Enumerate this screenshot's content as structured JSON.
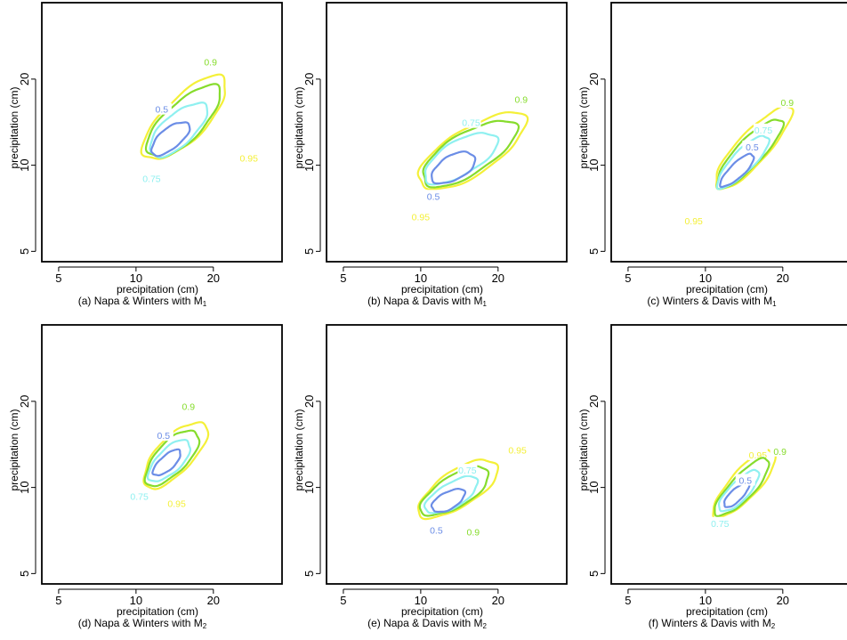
{
  "colors": {
    "0.5": "#6b8de6",
    "0.75": "#8ff0f0",
    "0.9": "#86dc2c",
    "0.95": "#f4f038"
  },
  "chart_data": [
    {
      "type": "contour",
      "caption": "(a) Napa & Winters with",
      "model": "M",
      "model_sub": "1",
      "xlabel": "precipitation (cm)",
      "ylabel": "precipitation (cm)",
      "x_ticks": [
        5,
        10,
        20
      ],
      "y_ticks": [
        5,
        10,
        20
      ],
      "log_scale": true,
      "xlim": [
        4.3,
        37
      ],
      "ylim": [
        4.6,
        37
      ],
      "levels": [
        {
          "level": "0.5",
          "center": [
            13.6,
            12.4
          ],
          "a": 0.2,
          "b": 0.085,
          "angle": 35,
          "label": "0.5",
          "label_pos": [
            12.6,
            15.7
          ]
        },
        {
          "level": "0.75",
          "center": [
            14.6,
            13.3
          ],
          "a": 0.31,
          "b": 0.13,
          "angle": 38,
          "label": "0.75",
          "label_pos": [
            11.5,
            9.0
          ]
        },
        {
          "level": "0.9",
          "center": [
            15.3,
            14.2
          ],
          "a": 0.41,
          "b": 0.16,
          "angle": 40,
          "label": "0.9",
          "label_pos": [
            19.5,
            23.0
          ]
        },
        {
          "level": "0.95",
          "center": [
            15.5,
            14.6
          ],
          "a": 0.47,
          "b": 0.18,
          "angle": 41,
          "label": "0.95",
          "label_pos": [
            27.5,
            10.6
          ]
        }
      ]
    },
    {
      "type": "contour",
      "caption": "(b) Napa & Davis with",
      "model": "M",
      "model_sub": "1",
      "xlabel": "precipitation (cm)",
      "ylabel": "precipitation (cm)",
      "x_ticks": [
        5,
        10,
        20
      ],
      "y_ticks": [
        5,
        10,
        20
      ],
      "log_scale": true,
      "xlim": [
        4.3,
        37
      ],
      "ylim": [
        4.6,
        37
      ],
      "levels": [
        {
          "level": "0.5",
          "center": [
            13.4,
            9.8
          ],
          "a": 0.21,
          "b": 0.1,
          "angle": 25,
          "label": "0.5",
          "label_pos": [
            11.2,
            7.8
          ]
        },
        {
          "level": "0.75",
          "center": [
            14.3,
            10.6
          ],
          "a": 0.36,
          "b": 0.14,
          "angle": 27,
          "label": "0.75",
          "label_pos": [
            15.7,
            14.1
          ]
        },
        {
          "level": "0.9",
          "center": [
            15.4,
            11.0
          ],
          "a": 0.47,
          "b": 0.17,
          "angle": 28,
          "label": "0.9",
          "label_pos": [
            24.6,
            17.0
          ]
        },
        {
          "level": "0.95",
          "center": [
            15.8,
            11.2
          ],
          "a": 0.54,
          "b": 0.19,
          "angle": 29,
          "label": "0.95",
          "label_pos": [
            10.0,
            6.6
          ]
        }
      ]
    },
    {
      "type": "contour",
      "caption": "(c) Winters & Davis with",
      "model": "M",
      "model_sub": "1",
      "xlabel": "precipitation (cm)",
      "ylabel": "precipitation (cm)",
      "x_ticks": [
        5,
        10,
        20
      ],
      "y_ticks": [
        5,
        10,
        20
      ],
      "log_scale": true,
      "xlim": [
        4.3,
        37
      ],
      "ylim": [
        4.6,
        37
      ],
      "levels": [
        {
          "level": "0.5",
          "center": [
            13.3,
            9.6
          ],
          "a": 0.19,
          "b": 0.06,
          "angle": 40,
          "label": "0.5",
          "label_pos": [
            15.2,
            11.6
          ]
        },
        {
          "level": "0.75",
          "center": [
            14.0,
            10.3
          ],
          "a": 0.3,
          "b": 0.09,
          "angle": 42,
          "label": "0.75",
          "label_pos": [
            16.8,
            13.3
          ]
        },
        {
          "level": "0.9",
          "center": [
            14.8,
            11.0
          ],
          "a": 0.39,
          "b": 0.11,
          "angle": 43,
          "label": "0.9",
          "label_pos": [
            20.8,
            16.6
          ]
        },
        {
          "level": "0.95",
          "center": [
            15.3,
            11.5
          ],
          "a": 0.46,
          "b": 0.13,
          "angle": 44,
          "label": "0.95",
          "label_pos": [
            9.0,
            6.4
          ]
        }
      ]
    },
    {
      "type": "contour",
      "caption": "(d) Napa & Winters with",
      "model": "M",
      "model_sub": "2",
      "xlabel": "precipitation (cm)",
      "ylabel": "precipitation (cm)",
      "x_ticks": [
        5,
        10,
        20
      ],
      "y_ticks": [
        5,
        10,
        20
      ],
      "log_scale": true,
      "xlim": [
        4.3,
        37
      ],
      "ylim": [
        4.6,
        37
      ],
      "levels": [
        {
          "level": "0.5",
          "center": [
            13.2,
            12.2
          ],
          "a": 0.15,
          "b": 0.06,
          "angle": 38,
          "label": "0.5",
          "label_pos": [
            12.8,
            15.2
          ]
        },
        {
          "level": "0.75",
          "center": [
            13.5,
            12.4
          ],
          "a": 0.23,
          "b": 0.1,
          "angle": 40,
          "label": "0.75",
          "label_pos": [
            10.3,
            9.3
          ]
        },
        {
          "level": "0.9",
          "center": [
            13.8,
            12.7
          ],
          "a": 0.3,
          "b": 0.13,
          "angle": 42,
          "label": "0.9",
          "label_pos": [
            16.0,
            19.2
          ]
        },
        {
          "level": "0.95",
          "center": [
            14.2,
            13.0
          ],
          "a": 0.36,
          "b": 0.15,
          "angle": 42,
          "label": "0.95",
          "label_pos": [
            14.4,
            8.8
          ]
        }
      ]
    },
    {
      "type": "contour",
      "caption": "(e) Napa & Davis with",
      "model": "M",
      "model_sub": "2",
      "xlabel": "precipitation (cm)",
      "ylabel": "precipitation (cm)",
      "x_ticks": [
        5,
        10,
        20
      ],
      "y_ticks": [
        5,
        10,
        20
      ],
      "log_scale": true,
      "xlim": [
        4.3,
        37
      ],
      "ylim": [
        4.6,
        37
      ],
      "levels": [
        {
          "level": "0.5",
          "center": [
            12.8,
            9.0
          ],
          "a": 0.16,
          "b": 0.07,
          "angle": 25,
          "label": "0.5",
          "label_pos": [
            11.5,
            7.1
          ]
        },
        {
          "level": "0.75",
          "center": [
            13.2,
            9.4
          ],
          "a": 0.26,
          "b": 0.1,
          "angle": 27,
          "label": "0.75",
          "label_pos": [
            15.2,
            11.5
          ]
        },
        {
          "level": "0.9",
          "center": [
            13.6,
            9.7
          ],
          "a": 0.34,
          "b": 0.13,
          "angle": 28,
          "label": "0.9",
          "label_pos": [
            16.0,
            7.0
          ]
        },
        {
          "level": "0.95",
          "center": [
            14.0,
            9.9
          ],
          "a": 0.4,
          "b": 0.15,
          "angle": 29,
          "label": "0.95",
          "label_pos": [
            23.8,
            13.5
          ]
        }
      ]
    },
    {
      "type": "contour",
      "caption": "(f) Winters & Davis with",
      "model": "M",
      "model_sub": "2",
      "xlabel": "precipitation (cm)",
      "ylabel": "precipitation (cm)",
      "x_ticks": [
        5,
        10,
        20
      ],
      "y_ticks": [
        5,
        10,
        20
      ],
      "log_scale": true,
      "xlim": [
        4.3,
        37
      ],
      "ylim": [
        4.6,
        37
      ],
      "levels": [
        {
          "level": "0.5",
          "center": [
            13.2,
            9.4
          ],
          "a": 0.14,
          "b": 0.05,
          "angle": 40,
          "label": "0.5",
          "label_pos": [
            14.3,
            10.6
          ]
        },
        {
          "level": "0.75",
          "center": [
            13.5,
            9.7
          ],
          "a": 0.23,
          "b": 0.08,
          "angle": 42,
          "label": "0.75",
          "label_pos": [
            11.4,
            7.5
          ]
        },
        {
          "level": "0.9",
          "center": [
            13.9,
            10.0
          ],
          "a": 0.32,
          "b": 0.1,
          "angle": 43,
          "label": "0.9",
          "label_pos": [
            19.5,
            13.4
          ]
        },
        {
          "level": "0.95",
          "center": [
            14.2,
            10.3
          ],
          "a": 0.37,
          "b": 0.12,
          "angle": 44,
          "label": "0.95",
          "label_pos": [
            16.0,
            13.0
          ]
        }
      ]
    }
  ]
}
